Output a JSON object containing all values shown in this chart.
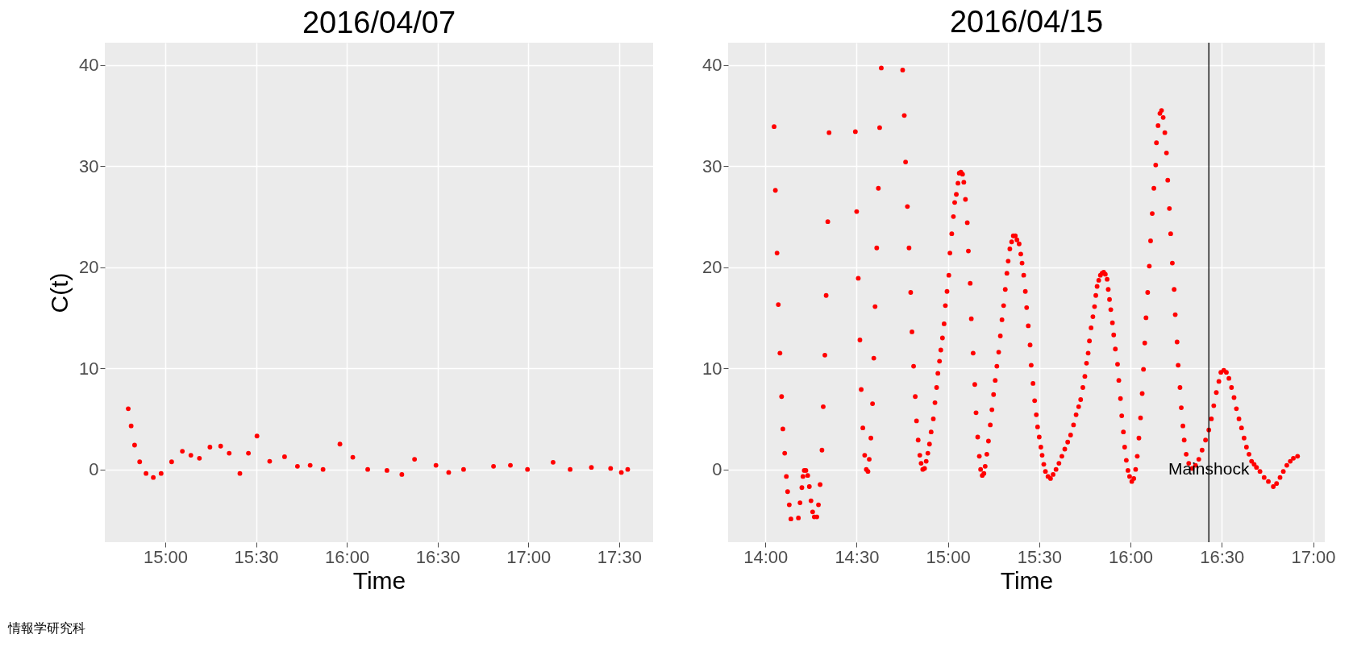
{
  "chart_data": [
    {
      "type": "scatter",
      "title": "2016/04/07",
      "xlabel": "Time",
      "ylabel": "C(t)",
      "marker": "circle",
      "grid": true,
      "legend": false,
      "xlim": [
        14.667,
        17.687
      ],
      "ylim": [
        -7.2,
        42.2
      ],
      "xticks": [
        {
          "value": 15,
          "label": "15:00"
        },
        {
          "value": 15.5,
          "label": "15:30"
        },
        {
          "value": 16,
          "label": "16:00"
        },
        {
          "value": 16.5,
          "label": "16:30"
        },
        {
          "value": 17,
          "label": "17:00"
        },
        {
          "value": 17.5,
          "label": "17:30"
        }
      ],
      "yticks": [
        0,
        10,
        20,
        30,
        40
      ],
      "series": [
        {
          "color": "#ff0000",
          "x": [
            14.796,
            14.812,
            14.831,
            14.859,
            14.894,
            14.934,
            14.977,
            15.035,
            15.094,
            15.141,
            15.188,
            15.246,
            15.305,
            15.352,
            15.411,
            15.458,
            15.505,
            15.575,
            15.657,
            15.728,
            15.798,
            15.869,
            15.962,
            16.033,
            16.115,
            16.221,
            16.303,
            16.373,
            16.491,
            16.561,
            16.643,
            16.808,
            16.901,
            16.995,
            17.136,
            17.23,
            17.347,
            17.453,
            17.512,
            17.547
          ],
          "values": [
            6.0,
            4.3,
            2.4,
            0.75,
            -0.4,
            -0.8,
            -0.4,
            0.75,
            1.8,
            1.4,
            1.1,
            2.2,
            2.3,
            1.6,
            -0.4,
            1.6,
            3.3,
            0.8,
            1.25,
            0.3,
            0.4,
            0,
            2.5,
            1.2,
            0,
            -0.1,
            -0.5,
            1.0,
            0.4,
            -0.3,
            0,
            0.3,
            0.4,
            0,
            0.7,
            0,
            0.2,
            0.1,
            -0.3,
            0
          ]
        }
      ],
      "annotations": [
        "情報学研究科"
      ]
    },
    {
      "type": "scatter",
      "title": "2016/04/15",
      "xlabel": "Time",
      "marker": "circle",
      "grid": true,
      "legend": false,
      "xlim": [
        13.796,
        17.064
      ],
      "ylim": [
        -7.2,
        42.2
      ],
      "xticks": [
        {
          "value": 14,
          "label": "14:00"
        },
        {
          "value": 14.5,
          "label": "14:30"
        },
        {
          "value": 15,
          "label": "15:00"
        },
        {
          "value": 15.5,
          "label": "15:30"
        },
        {
          "value": 16,
          "label": "16:00"
        },
        {
          "value": 16.5,
          "label": "16:30"
        },
        {
          "value": 17,
          "label": "17:00"
        }
      ],
      "yticks": [
        0,
        10,
        20,
        30,
        40
      ],
      "ref_lines": [
        {
          "axis": "x",
          "value": 16.429,
          "color": "#000000"
        }
      ],
      "annotations": [
        {
          "text": "Mainshock",
          "x": 16.429,
          "y": 0
        }
      ],
      "series": [
        {
          "color": "#ff0000",
          "x": [
            14.048,
            14.055,
            14.064,
            14.071,
            14.08,
            14.089,
            14.096,
            14.106,
            14.115,
            14.122,
            14.131,
            14.14,
            14.181,
            14.19,
            14.2,
            14.206,
            14.213,
            14.222,
            14.232,
            14.241,
            14.25,
            14.259,
            14.268,
            14.282,
            14.291,
            14.3,
            14.31,
            14.317,
            14.326,
            14.333,
            14.342,
            14.349,
            14.493,
            14.5,
            14.509,
            14.518,
            14.525,
            14.534,
            14.544,
            14.553,
            14.562,
            14.569,
            14.578,
            14.587,
            14.594,
            14.601,
            14.61,
            14.619,
            14.626,
            14.635,
            14.752,
            14.761,
            14.768,
            14.778,
            14.787,
            14.796,
            14.803,
            14.812,
            14.821,
            14.828,
            14.837,
            14.846,
            14.853,
            14.862,
            14.872,
            14.881,
            14.89,
            14.899,
            14.908,
            14.92,
            14.929,
            14.938,
            14.945,
            14.954,
            14.961,
            14.97,
            14.979,
            14.986,
            14.995,
            15.005,
            15.011,
            15.021,
            15.03,
            15.037,
            15.046,
            15.055,
            15.062,
            15.071,
            15.08,
            15.087,
            15.096,
            15.106,
            15.112,
            15.122,
            15.128,
            15.138,
            15.147,
            15.154,
            15.163,
            15.172,
            15.179,
            15.188,
            15.197,
            15.204,
            15.213,
            15.222,
            15.232,
            15.241,
            15.25,
            15.259,
            15.268,
            15.278,
            15.287,
            15.296,
            15.305,
            15.314,
            15.323,
            15.33,
            15.339,
            15.349,
            15.358,
            15.369,
            15.378,
            15.39,
            15.399,
            15.406,
            15.415,
            15.424,
            15.431,
            15.44,
            15.45,
            15.456,
            15.466,
            15.475,
            15.484,
            15.491,
            15.5,
            15.509,
            15.516,
            15.525,
            15.534,
            15.548,
            15.562,
            15.576,
            15.592,
            15.608,
            15.624,
            15.64,
            15.656,
            15.672,
            15.688,
            15.702,
            15.716,
            15.727,
            15.739,
            15.75,
            15.759,
            15.768,
            15.775,
            15.784,
            15.794,
            15.803,
            15.81,
            15.817,
            15.826,
            15.835,
            15.844,
            15.853,
            15.862,
            15.872,
            15.878,
            15.885,
            15.892,
            15.901,
            15.908,
            15.917,
            15.929,
            15.936,
            15.945,
            15.952,
            15.961,
            15.968,
            15.977,
            15.986,
            15.995,
            16.007,
            16.018,
            16.028,
            16.037,
            16.046,
            16.055,
            16.064,
            16.071,
            16.078,
            16.085,
            16.094,
            16.103,
            16.11,
            16.119,
            16.128,
            16.138,
            16.142,
            16.151,
            16.161,
            16.17,
            16.179,
            16.188,
            16.197,
            16.204,
            16.213,
            16.22,
            16.229,
            16.239,
            16.245,
            16.255,
            16.261,
            16.271,
            16.278,
            16.287,
            16.294,
            16.305,
            16.319,
            16.337,
            16.356,
            16.374,
            16.392,
            16.411,
            16.429,
            16.443,
            16.456,
            16.47,
            16.484,
            16.495,
            16.511,
            16.525,
            16.539,
            16.553,
            16.567,
            16.58,
            16.594,
            16.608,
            16.622,
            16.635,
            16.649,
            16.663,
            16.677,
            16.69,
            16.709,
            16.732,
            16.755,
            16.782,
            16.8,
            16.819,
            16.837,
            16.856,
            16.875,
            16.892,
            16.915
          ],
          "values": [
            33.9,
            27.6,
            21.4,
            16.3,
            11.5,
            7.2,
            4.0,
            1.6,
            -0.7,
            -2.2,
            -3.5,
            -4.9,
            -4.8,
            -3.3,
            -1.8,
            -0.7,
            -0.1,
            -0.1,
            -0.6,
            -1.7,
            -3.1,
            -4.2,
            -4.7,
            -4.7,
            -3.5,
            -1.5,
            1.9,
            6.2,
            11.3,
            17.2,
            24.5,
            33.3,
            33.4,
            25.5,
            18.9,
            12.8,
            7.9,
            4.1,
            1.4,
            0.0,
            -0.2,
            1.0,
            3.1,
            6.5,
            11.0,
            16.1,
            21.9,
            27.8,
            33.8,
            39.7,
            39.5,
            35.0,
            30.4,
            26.0,
            21.9,
            17.5,
            13.6,
            10.2,
            7.2,
            4.8,
            2.9,
            1.4,
            0.6,
            0.0,
            0.1,
            0.8,
            1.6,
            2.5,
            3.7,
            5.0,
            6.6,
            8.1,
            9.5,
            10.7,
            11.8,
            13.0,
            14.4,
            16.2,
            17.6,
            19.2,
            21.4,
            23.3,
            25.0,
            26.4,
            27.2,
            28.3,
            29.3,
            29.4,
            29.2,
            28.4,
            26.7,
            24.4,
            21.6,
            18.4,
            14.9,
            11.5,
            8.4,
            5.6,
            3.2,
            1.3,
            0.0,
            -0.6,
            -0.4,
            0.3,
            1.5,
            2.8,
            4.4,
            5.9,
            7.4,
            8.8,
            10.2,
            11.6,
            13.2,
            14.8,
            16.2,
            17.8,
            19.4,
            20.6,
            21.8,
            22.5,
            23.1,
            23.1,
            22.7,
            22.3,
            21.3,
            20.4,
            19.2,
            17.6,
            16.0,
            14.2,
            12.3,
            10.3,
            8.5,
            6.8,
            5.4,
            4.2,
            3.2,
            2.2,
            1.4,
            0.5,
            -0.2,
            -0.7,
            -0.9,
            -0.5,
            0.0,
            0.6,
            1.3,
            2.0,
            2.7,
            3.4,
            4.4,
            5.4,
            6.2,
            6.9,
            8.1,
            9.2,
            10.5,
            11.5,
            12.7,
            14.0,
            15.1,
            16.1,
            17.2,
            18.1,
            18.7,
            19.2,
            19.4,
            19.5,
            19.3,
            18.8,
            17.8,
            16.8,
            15.8,
            14.5,
            13.3,
            11.9,
            10.4,
            8.8,
            7.0,
            5.3,
            3.7,
            2.2,
            0.9,
            -0.1,
            -0.7,
            -1.2,
            -0.9,
            0.0,
            1.3,
            3.1,
            5.1,
            7.5,
            9.9,
            12.5,
            15.0,
            17.5,
            20.1,
            22.6,
            25.3,
            27.8,
            30.1,
            32.3,
            34.0,
            35.2,
            35.5,
            34.8,
            33.3,
            31.3,
            28.6,
            25.8,
            23.3,
            20.4,
            17.8,
            15.3,
            12.6,
            10.3,
            8.1,
            6.1,
            4.3,
            2.9,
            1.5,
            0.6,
            0.1,
            0.4,
            1.0,
            1.9,
            2.9,
            3.9,
            5.0,
            6.3,
            7.6,
            8.7,
            9.6,
            9.8,
            9.6,
            9.0,
            8.1,
            7.1,
            6.0,
            5.0,
            4.1,
            3.1,
            2.2,
            1.5,
            0.8,
            0.5,
            0.2,
            -0.2,
            -0.8,
            -1.2,
            -1.7,
            -1.4,
            -0.8,
            -0.2,
            0.4,
            0.8,
            1.1,
            1.3
          ]
        }
      ]
    }
  ]
}
